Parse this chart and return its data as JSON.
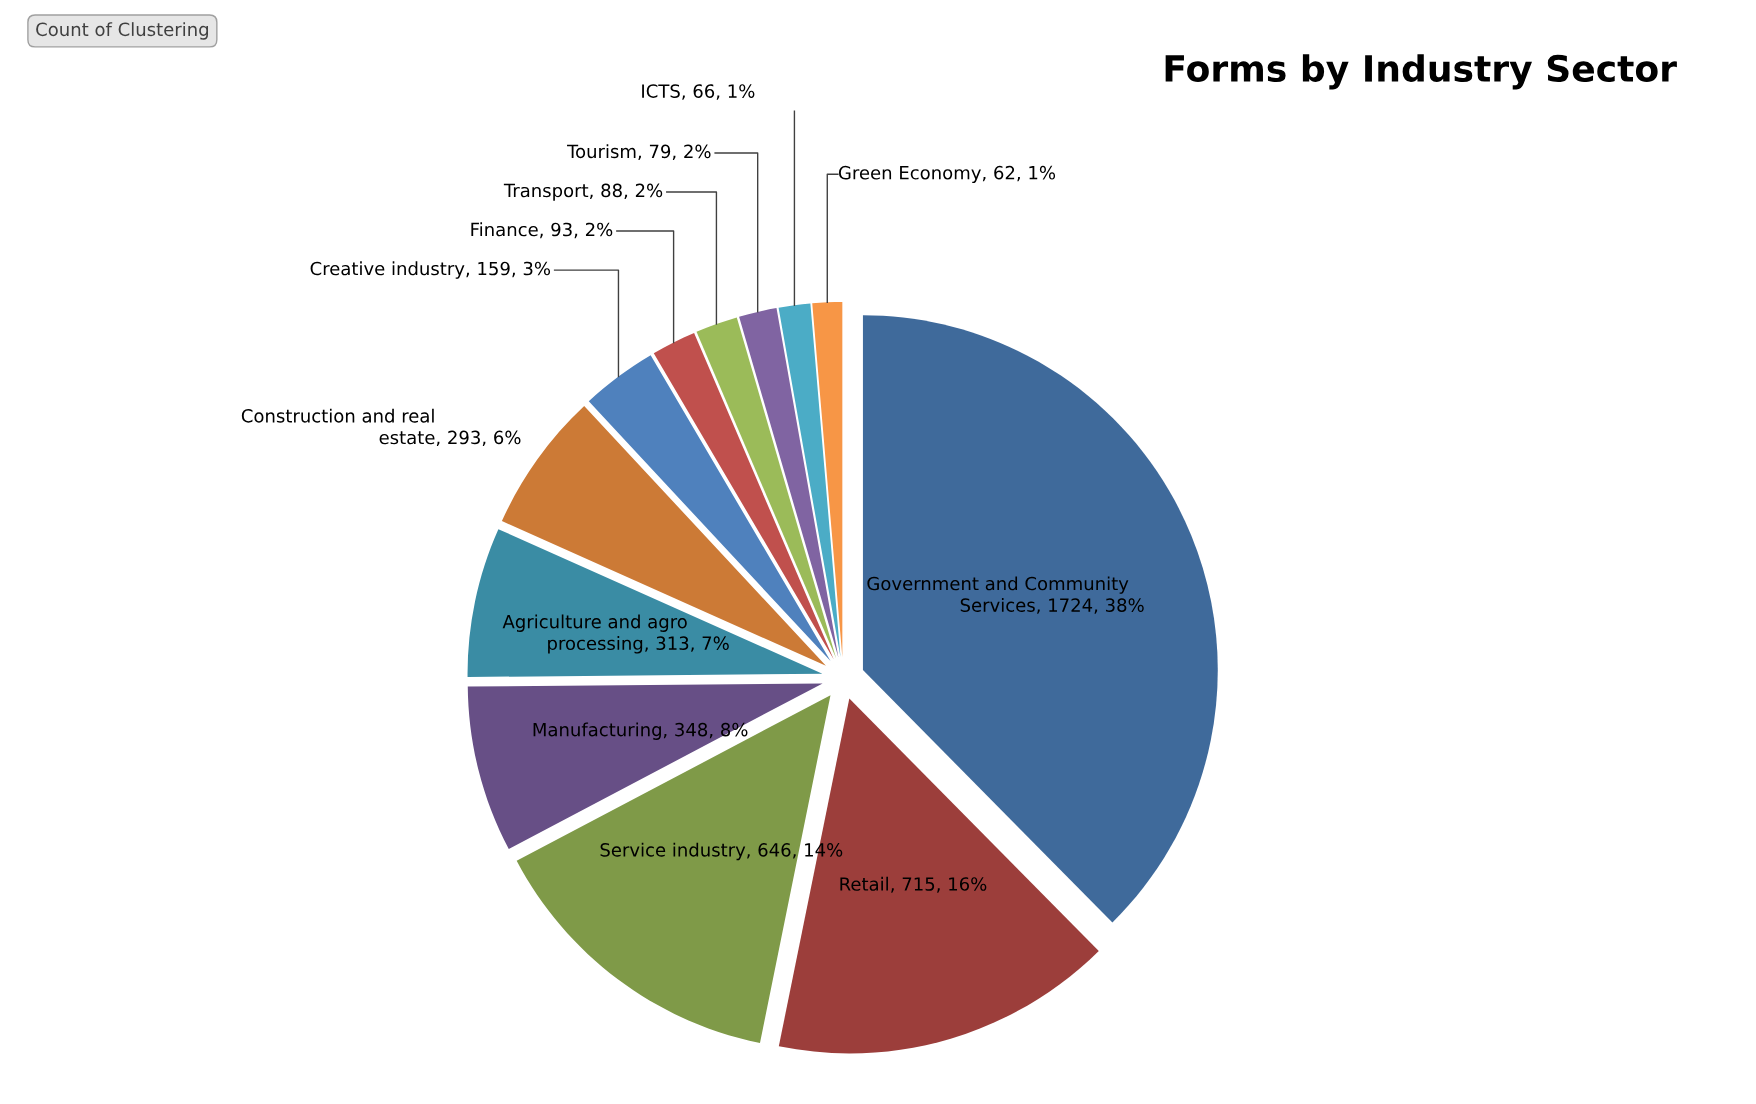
{
  "chart_data": {
    "type": "pie",
    "title": "Forms by Industry Sector",
    "categories": [
      "Government and Community Services",
      "Retail",
      "Service industry",
      "Manufacturing",
      "Agriculture and agro processing",
      "Construction and real estate",
      "Creative industry",
      "Finance",
      "Transport",
      "Tourism",
      "ICTS",
      "Green Economy"
    ],
    "values": [
      1724,
      715,
      646,
      348,
      313,
      293,
      159,
      93,
      88,
      79,
      66,
      62
    ],
    "value_labels": [
      ", 1724, 38%",
      ", 715, 16%",
      ", 646, 14%",
      ", 348, 8%",
      ", 313, 7%",
      ", 293, 6%",
      ", 159, 3%",
      ", 93, 2%",
      ", 88, 2%",
      ", 79, 2%",
      ", 66, 1%",
      ", 62, 1%"
    ],
    "colors": [
      "#3f6a9b",
      "#9c3e3b",
      "#7f9a48",
      "#674f86",
      "#3a8ca4",
      "#cc7a36",
      "#4f81bd",
      "#c0504d",
      "#9bbb59",
      "#8064a2",
      "#4bacc6",
      "#f79646"
    ],
    "annotations": [
      "Count of Clustering"
    ],
    "legend": false
  }
}
